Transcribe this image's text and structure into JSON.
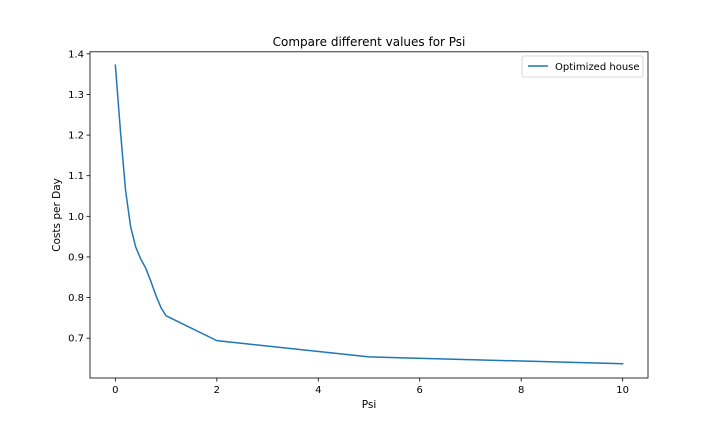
{
  "chart_data": {
    "type": "line",
    "title": "Compare different values for Psi",
    "xlabel": "Psi",
    "ylabel": "Costs per Day",
    "xlim": [
      -0.5,
      10.5
    ],
    "ylim": [
      0.602,
      1.405
    ],
    "xticks": [
      0,
      2,
      4,
      6,
      8,
      10
    ],
    "xtick_labels": [
      "0",
      "2",
      "4",
      "6",
      "8",
      "10"
    ],
    "yticks": [
      0.7,
      0.8,
      0.9,
      1.0,
      1.1,
      1.2,
      1.3,
      1.4
    ],
    "ytick_labels": [
      "0.7",
      "0.8",
      "0.9",
      "1.0",
      "1.1",
      "1.2",
      "1.3",
      "1.4"
    ],
    "grid": false,
    "legend": "top-right",
    "series": [
      {
        "name": "Optimized house",
        "color": "#1f77b4",
        "x": [
          0.0,
          0.1,
          0.2,
          0.3,
          0.4,
          0.5,
          0.6,
          0.7,
          0.8,
          0.9,
          1.0,
          2.0,
          5.0,
          10.0
        ],
        "y": [
          1.372,
          1.21,
          1.065,
          0.975,
          0.925,
          0.895,
          0.872,
          0.84,
          0.805,
          0.775,
          0.755,
          0.694,
          0.654,
          0.637
        ]
      }
    ]
  }
}
